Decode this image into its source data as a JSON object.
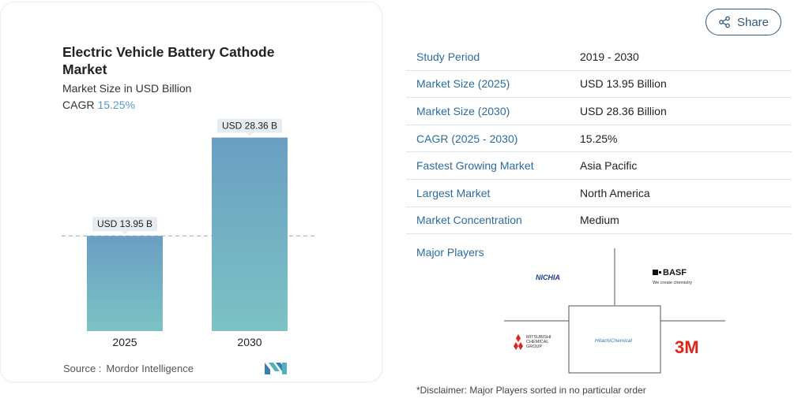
{
  "card": {
    "title": "Electric Vehicle Battery Cathode Market",
    "subtitle": "Market Size in USD Billion",
    "cagr_label": "CAGR",
    "cagr_value": "15.25%",
    "source_label": "Source :",
    "source_value": "Mordor Intelligence"
  },
  "chart_data": {
    "type": "bar",
    "categories": [
      "2025",
      "2030"
    ],
    "values": [
      13.95,
      28.36
    ],
    "value_labels": [
      "USD 13.95 B",
      "USD 28.36 B"
    ],
    "ylim": [
      0,
      32
    ],
    "reference_line": 13.95,
    "colors": {
      "bar_top": "#6a9ec2",
      "bar_bottom": "#7cc3c4",
      "label_bg": "#e6ecef",
      "dashed": "#7fa9c8"
    }
  },
  "share": {
    "label": "Share",
    "icon": "share-icon"
  },
  "info": {
    "rows": [
      {
        "key": "Study Period",
        "value": "2019 - 2030"
      },
      {
        "key": "Market Size (2025)",
        "value": "USD 13.95 Billion"
      },
      {
        "key": "Market Size (2030)",
        "value": "USD 28.36 Billion"
      },
      {
        "key": "CAGR (2025 - 2030)",
        "value": "15.25%"
      },
      {
        "key": "Fastest Growing Market",
        "value": "Asia Pacific"
      },
      {
        "key": "Largest Market",
        "value": "North America"
      },
      {
        "key": "Market Concentration",
        "value": "Medium"
      }
    ],
    "players_label": "Major Players",
    "players": {
      "nichia": "NICHIA",
      "basf": "BASF",
      "basf_tagline": "We create chemistry",
      "mitsubishi": [
        "MITSUBISHI",
        "CHEMICAL",
        "GROUP"
      ],
      "hitachi": "HitachiChemical",
      "3m": "3M"
    },
    "disclaimer": "*Disclaimer: Major Players sorted in no particular order"
  },
  "theme": {
    "accent": "#2c6c9c",
    "cagr_color": "#5a9bc0",
    "threem_red": "#e2231a",
    "mitsubishi_red": "#e2231a"
  }
}
